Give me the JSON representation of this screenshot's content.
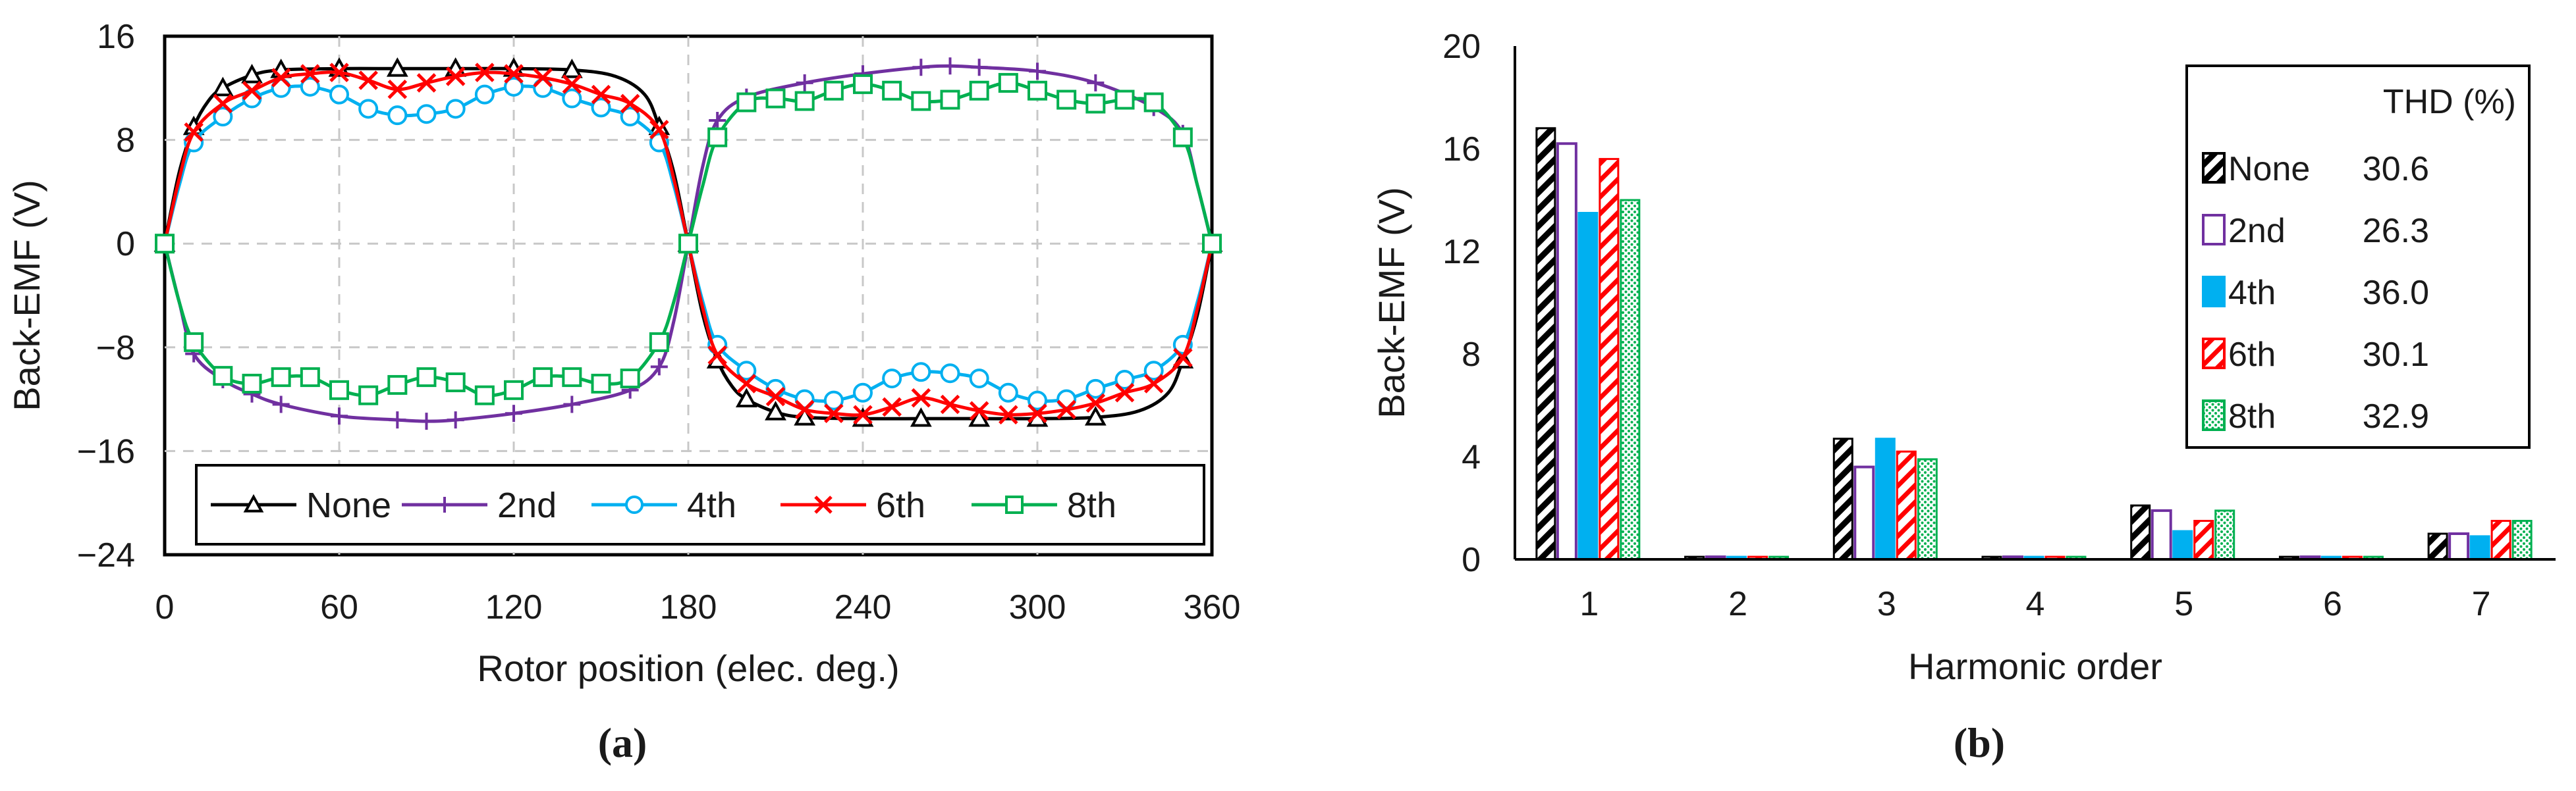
{
  "chart_data": [
    {
      "panel": "a",
      "caption": "(a)",
      "type": "line",
      "xlabel": "Rotor position (elec. deg.)",
      "ylabel": "Back-EMF (V)",
      "xlim": [
        0,
        360
      ],
      "ylim": [
        -24,
        16
      ],
      "xticks": [
        "0",
        "60",
        "120",
        "180",
        "240",
        "300",
        "360"
      ],
      "yticks": [
        "16",
        "8",
        "0",
        "-8",
        "-16",
        "-24"
      ],
      "grid": true,
      "legend_position": "bottom",
      "series": [
        {
          "name": "None",
          "color": "#000000",
          "marker": "triangle",
          "x": [
            0,
            5,
            10,
            15,
            20,
            30,
            40,
            60,
            80,
            100,
            120,
            140,
            155,
            165,
            170,
            175,
            180,
            185,
            190,
            195,
            200,
            210,
            220,
            240,
            260,
            280,
            300,
            320,
            335,
            345,
            350,
            355,
            360
          ],
          "y": [
            0,
            5.5,
            9,
            11,
            12,
            13,
            13.4,
            13.5,
            13.5,
            13.5,
            13.5,
            13.4,
            12.9,
            11.5,
            9,
            5.5,
            0,
            -5.5,
            -9,
            -11,
            -12,
            -13,
            -13.4,
            -13.5,
            -13.5,
            -13.5,
            -13.5,
            -13.4,
            -12.9,
            -11.5,
            -9,
            -5.5,
            0
          ]
        },
        {
          "name": "2nd",
          "color": "#7030a0",
          "marker": "plus",
          "x": [
            0,
            5,
            10,
            20,
            30,
            40,
            60,
            80,
            90,
            100,
            120,
            140,
            160,
            170,
            175,
            180,
            185,
            190,
            200,
            220,
            240,
            260,
            270,
            280,
            300,
            320,
            340,
            350,
            355,
            360
          ],
          "y": [
            0,
            -4.5,
            -8.5,
            -10.5,
            -11.6,
            -12.4,
            -13.3,
            -13.6,
            -13.7,
            -13.6,
            -13.1,
            -12.4,
            -11.3,
            -9.5,
            -6,
            0,
            6,
            9.5,
            11.3,
            12.4,
            13.1,
            13.6,
            13.7,
            13.6,
            13.3,
            12.4,
            10.5,
            8.5,
            4.5,
            0
          ]
        },
        {
          "name": "4th",
          "color": "#00b0f0",
          "marker": "circle",
          "x": [
            0,
            5,
            10,
            20,
            30,
            40,
            50,
            60,
            70,
            80,
            90,
            100,
            110,
            120,
            130,
            140,
            150,
            160,
            170,
            175,
            180,
            185,
            190,
            200,
            210,
            220,
            230,
            240,
            250,
            260,
            270,
            280,
            290,
            300,
            310,
            320,
            330,
            340,
            350,
            355,
            360
          ],
          "y": [
            0,
            4.5,
            7.8,
            9.8,
            11.2,
            12,
            12.1,
            11.5,
            10.4,
            9.9,
            10,
            10.4,
            11.5,
            12.1,
            12,
            11.2,
            10.5,
            9.8,
            7.8,
            4.5,
            0,
            -4.5,
            -7.8,
            -9.8,
            -11.2,
            -12,
            -12.1,
            -11.5,
            -10.4,
            -9.9,
            -10,
            -10.4,
            -11.5,
            -12.1,
            -12,
            -11.2,
            -10.5,
            -9.8,
            -7.8,
            -4.5,
            0
          ]
        },
        {
          "name": "6th",
          "color": "#ff0000",
          "marker": "x",
          "x": [
            0,
            5,
            10,
            20,
            30,
            40,
            50,
            60,
            70,
            80,
            90,
            100,
            110,
            120,
            130,
            140,
            150,
            160,
            170,
            175,
            180,
            185,
            190,
            200,
            210,
            220,
            230,
            240,
            250,
            260,
            270,
            280,
            290,
            300,
            310,
            320,
            330,
            340,
            350,
            355,
            360
          ],
          "y": [
            0,
            5,
            8.6,
            10.8,
            11.8,
            12.8,
            13.1,
            13.2,
            12.6,
            11.9,
            12.4,
            12.9,
            13.2,
            13.1,
            12.8,
            12.3,
            11.5,
            10.8,
            8.8,
            5,
            0,
            -5,
            -8.6,
            -10.8,
            -11.8,
            -12.8,
            -13.1,
            -13.2,
            -12.6,
            -11.9,
            -12.4,
            -12.9,
            -13.2,
            -13.1,
            -12.8,
            -12.3,
            -11.5,
            -10.8,
            -8.8,
            -5,
            0
          ]
        },
        {
          "name": "8th",
          "color": "#00b050",
          "marker": "square",
          "x": [
            0,
            5,
            10,
            20,
            30,
            40,
            50,
            60,
            70,
            80,
            90,
            100,
            110,
            120,
            130,
            140,
            150,
            160,
            170,
            175,
            180,
            185,
            190,
            200,
            210,
            220,
            230,
            240,
            250,
            260,
            270,
            280,
            290,
            300,
            310,
            320,
            330,
            340,
            350,
            355,
            360
          ],
          "y": [
            0,
            -4.5,
            -7.6,
            -10.2,
            -10.8,
            -10.3,
            -10.3,
            -11.3,
            -11.7,
            -10.9,
            -10.3,
            -10.7,
            -11.7,
            -11.3,
            -10.3,
            -10.3,
            -10.8,
            -10.4,
            -7.6,
            -4.5,
            0,
            4.5,
            8.2,
            10.9,
            11.2,
            11,
            11.8,
            12.3,
            11.8,
            11,
            11.1,
            11.8,
            12.4,
            11.8,
            11.1,
            10.8,
            11.1,
            10.9,
            8.2,
            4.5,
            0
          ]
        }
      ]
    },
    {
      "panel": "b",
      "caption": "(b)",
      "type": "bar",
      "xlabel": "Harmonic order",
      "ylabel": "Back-EMF (V)",
      "categories": [
        "1",
        "2",
        "3",
        "4",
        "5",
        "6",
        "7"
      ],
      "ylim": [
        0,
        20
      ],
      "yticks": [
        "20",
        "16",
        "12",
        "8",
        "4",
        "0"
      ],
      "legend_title": "THD (%)",
      "legend_position": "top-right",
      "series": [
        {
          "name": "None",
          "thd": "30.6",
          "fill": "#000000",
          "pattern": "hatch-black",
          "values": [
            16.8,
            0.1,
            4.7,
            0.1,
            2.1,
            0.1,
            1.0
          ]
        },
        {
          "name": "2nd",
          "thd": "26.3",
          "fill": "#7030a0",
          "pattern": "outline-purple",
          "values": [
            16.2,
            0.1,
            3.6,
            0.1,
            1.9,
            0.1,
            1.0
          ]
        },
        {
          "name": "4th",
          "thd": "36.0",
          "fill": "#00b0f0",
          "pattern": "solid-blue",
          "values": [
            13.5,
            0.1,
            4.7,
            0.1,
            1.1,
            0.1,
            0.9
          ]
        },
        {
          "name": "6th",
          "thd": "30.1",
          "fill": "#ff0000",
          "pattern": "hatch-red",
          "values": [
            15.6,
            0.1,
            4.2,
            0.1,
            1.5,
            0.1,
            1.5
          ]
        },
        {
          "name": "8th",
          "thd": "32.9",
          "fill": "#00b050",
          "pattern": "dots-green",
          "values": [
            14.0,
            0.1,
            3.9,
            0.1,
            1.9,
            0.1,
            1.5
          ]
        }
      ]
    }
  ]
}
